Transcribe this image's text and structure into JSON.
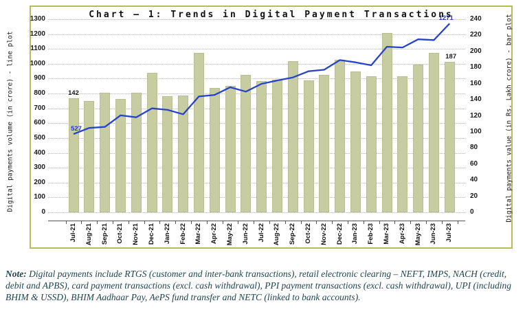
{
  "title": "Chart – 1: Trends in Digital Payment Transactions",
  "chart_data": {
    "type": "bar+line combo",
    "categories": [
      "Jul-21",
      "Aug-21",
      "Sep-21",
      "Oct-21",
      "Nov-21",
      "Dec-21",
      "Jan-22",
      "Feb-22",
      "Mar-22",
      "Apr-22",
      "May-22",
      "Jun-22",
      "Jul-22",
      "Aug-22",
      "Sep-22",
      "Oct-22",
      "Nov-22",
      "Dec-22",
      "Jan-23",
      "Feb-23",
      "Mar-23",
      "Apr-23",
      "May-23",
      "Jun-23",
      "Jul-23"
    ],
    "series": [
      {
        "name": "Digital payments value (in Rs. Lakh crore)",
        "type": "bar",
        "axis": "right",
        "values": [
          142,
          138,
          149,
          141,
          149,
          173,
          144,
          145,
          198,
          155,
          157,
          171,
          163,
          165,
          188,
          164,
          171,
          190,
          175,
          169,
          223,
          169,
          184,
          198,
          187
        ]
      },
      {
        "name": "Digital payments volume (in crore)",
        "type": "line",
        "axis": "left",
        "values": [
          527,
          568,
          575,
          653,
          640,
          700,
          690,
          660,
          780,
          790,
          842,
          813,
          865,
          888,
          908,
          950,
          960,
          1025,
          1010,
          990,
          1115,
          1110,
          1165,
          1160,
          1271
        ]
      }
    ],
    "left_axis": {
      "label": "Digital payments volume (in crore) - line plot",
      "min": 0,
      "max": 1300,
      "step": 100
    },
    "right_axis": {
      "label": "Digital payments value (in Rs. Lakh crore) - bar plot",
      "min": 0,
      "max": 240,
      "step": 20
    },
    "grid": true,
    "legend": "none",
    "data_labels": [
      {
        "target": "bar",
        "index": 0,
        "text": "142",
        "color": "#1a1a1a",
        "dx": 0
      },
      {
        "target": "bar",
        "index": 24,
        "text": "187",
        "color": "#1a1a1a",
        "dx": 2
      },
      {
        "target": "line",
        "index": 0,
        "text": "527",
        "color": "#2038c8",
        "dx": 4
      },
      {
        "target": "line",
        "index": 24,
        "text": "1271",
        "color": "#2038c8",
        "dx": -5
      }
    ]
  },
  "colors": {
    "bar_fill": "#c7cca1",
    "line_stroke": "#2744c9",
    "box_border": "#b6bc5e",
    "gridline": "#b3b3b3",
    "note_text": "#20454f"
  },
  "note": {
    "prefix": "Note:",
    "text": " Digital payments include RTGS (customer and inter-bank transactions), retail electronic clearing – NEFT, IMPS, NACH (credit, debit and APBS), card payment transactions (excl. cash withdrawal), PPI payment transactions (excl. cash withdrawal), UPI (including BHIM & USSD), BHIM Aadhaar Pay, AePS fund transfer and NETC (linked to bank accounts)."
  }
}
